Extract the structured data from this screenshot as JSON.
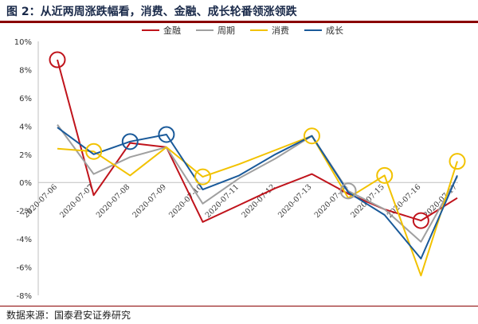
{
  "figure": {
    "title": "图 2：从近两周涨跌幅看，消费、金融、成长轮番领涨领跌",
    "source": "数据来源：国泰君安证券研究"
  },
  "chart_data": {
    "type": "line",
    "xlabel": "",
    "ylabel": "",
    "ylim": [
      -8,
      10
    ],
    "ytick_step": 2,
    "yticks": [
      "10%",
      "8%",
      "6%",
      "4%",
      "2%",
      "0%",
      "-2%",
      "-4%",
      "-6%",
      "-8%"
    ],
    "categories": [
      "2020-07-06",
      "2020-07-07",
      "2020-07-08",
      "2020-07-09",
      "2020-07-10",
      "2020-07-11",
      "2020-07-12",
      "2020-07-13",
      "2020-07-14",
      "2020-07-15",
      "2020-07-16",
      "2020-07-17"
    ],
    "legend_position": "top",
    "grid": false,
    "series": [
      {
        "name": "金融",
        "color": "#c0141c",
        "values": [
          8.7,
          -0.9,
          2.8,
          2.5,
          -2.8,
          -1.6,
          -0.4,
          0.6,
          -0.8,
          -1.9,
          -2.7,
          -1.1
        ]
      },
      {
        "name": "周期",
        "color": "#a0a0a0",
        "values": [
          4.1,
          0.6,
          1.8,
          2.5,
          -1.5,
          0.3,
          1.7,
          3.3,
          -0.6,
          -1.9,
          -4.2,
          0.4
        ]
      },
      {
        "name": "消费",
        "color": "#f2c200",
        "values": [
          2.4,
          2.2,
          0.5,
          2.5,
          0.4,
          1.3,
          2.3,
          3.3,
          -1.1,
          0.5,
          -6.6,
          1.5
        ]
      },
      {
        "name": "成长",
        "color": "#1a5a9a",
        "values": [
          3.9,
          2.0,
          2.9,
          3.4,
          -0.5,
          0.5,
          2.0,
          3.3,
          -0.7,
          -2.3,
          -5.4,
          0.5
        ]
      }
    ],
    "highlights": [
      {
        "series": "金融",
        "index": 0
      },
      {
        "series": "消费",
        "index": 1
      },
      {
        "series": "成长",
        "index": 2
      },
      {
        "series": "成长",
        "index": 3
      },
      {
        "series": "消费",
        "index": 4
      },
      {
        "series": "消费",
        "index": 7
      },
      {
        "series": "周期",
        "index": 8
      },
      {
        "series": "消费",
        "index": 9
      },
      {
        "series": "金融",
        "index": 10
      },
      {
        "series": "消费",
        "index": 11
      }
    ]
  }
}
